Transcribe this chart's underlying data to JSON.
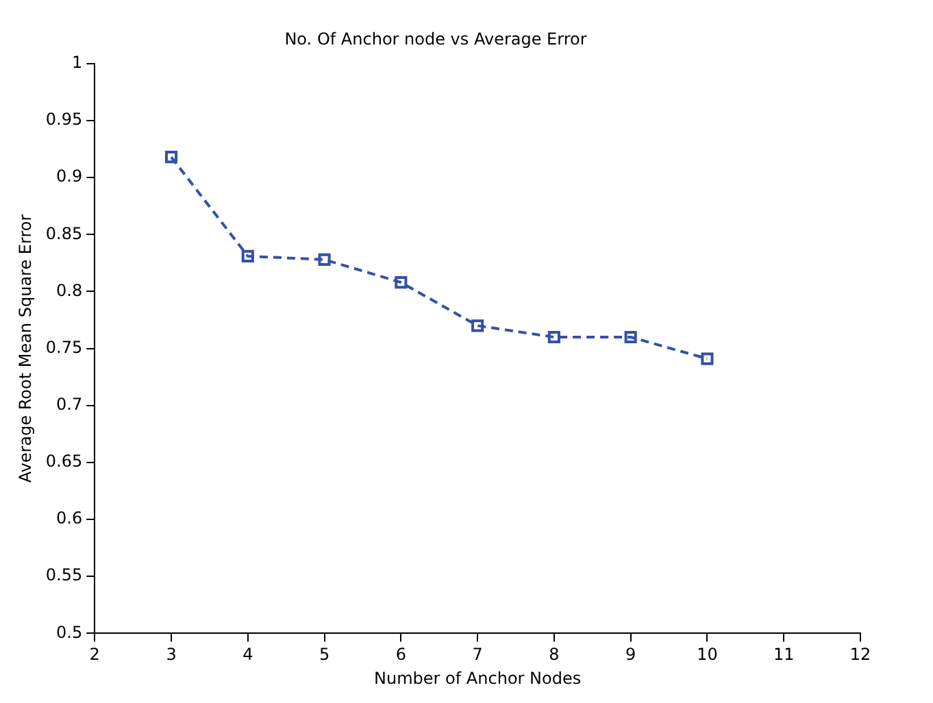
{
  "chart_data": {
    "type": "line",
    "title": "No. Of Anchor node vs Average Error",
    "xlabel": "Number of Anchor Nodes",
    "ylabel": "Average Root Mean Square Error",
    "x": [
      3,
      4,
      5,
      6,
      7,
      8,
      9,
      10
    ],
    "series": [
      {
        "color": "#3450a8",
        "values": [
          0.918,
          0.831,
          0.828,
          0.808,
          0.77,
          0.76,
          0.76,
          0.741
        ]
      }
    ],
    "xlim": [
      2,
      12
    ],
    "xticks": [
      2,
      3,
      4,
      5,
      6,
      7,
      8,
      9,
      10,
      11,
      12
    ],
    "ylim": [
      0.5,
      1
    ],
    "yticks": [
      0.5,
      0.55,
      0.6,
      0.65,
      0.7,
      0.75,
      0.8,
      0.85,
      0.9,
      0.95,
      1
    ],
    "marker": "square",
    "line_style": "dashed",
    "grid": false,
    "legend": false
  }
}
